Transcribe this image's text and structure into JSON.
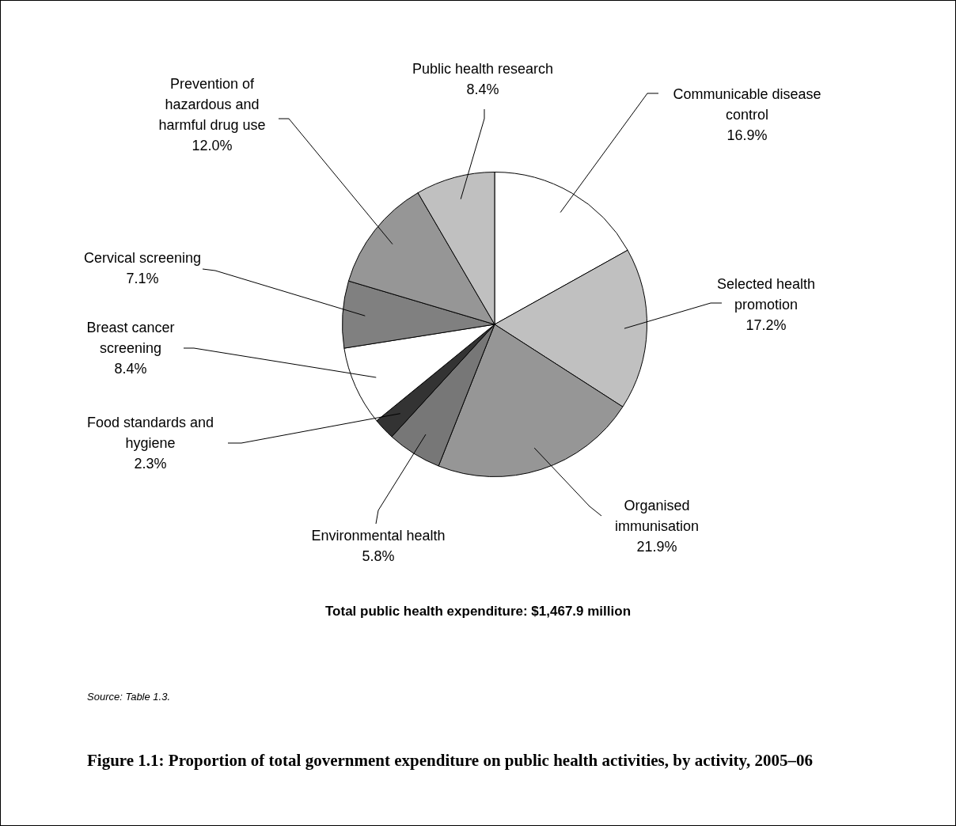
{
  "chart_data": {
    "type": "pie",
    "title": "Figure 1.1: Proportion of total government expenditure on public health activities, by activity, 2005–06",
    "categories": [
      "Communicable disease control",
      "Selected health promotion",
      "Organised immunisation",
      "Environmental health",
      "Food standards and hygiene",
      "Breast cancer screening",
      "Cervical screening",
      "Prevention of hazardous and harmful drug use",
      "Public health research"
    ],
    "values": [
      16.9,
      17.2,
      21.9,
      5.8,
      2.3,
      8.4,
      7.1,
      12.0,
      8.4
    ],
    "value_labels": [
      "16.9%",
      "17.2%",
      "21.9%",
      "5.8%",
      "2.3%",
      "8.4%",
      "7.1%",
      "12.0%",
      "8.4%"
    ],
    "colors": [
      "#ffffff",
      "#c0c0c0",
      "#969696",
      "#777777",
      "#333333",
      "#ffffff",
      "#808080",
      "#969696",
      "#c0c0c0"
    ],
    "annotations": [
      "Total public health expenditure: $1,467.9 million",
      "Source: Table 1.3."
    ],
    "legend": false
  }
}
